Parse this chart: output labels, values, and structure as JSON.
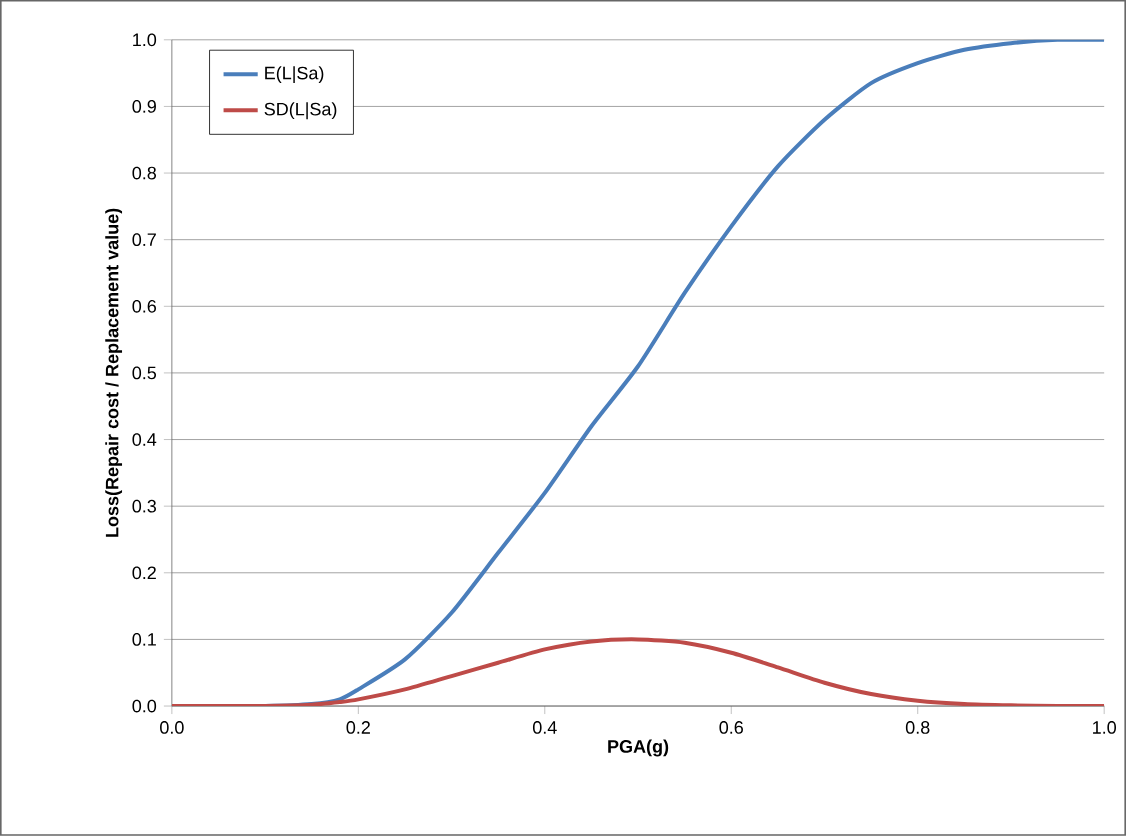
{
  "chart_data": {
    "type": "line",
    "xlabel": "PGA(g)",
    "ylabel": "Loss(Repair cost / Replacement value)",
    "x": [
      0,
      0.05,
      0.1,
      0.15,
      0.18,
      0.2,
      0.25,
      0.3,
      0.35,
      0.4,
      0.45,
      0.5,
      0.55,
      0.6,
      0.65,
      0.7,
      0.75,
      0.8,
      0.85,
      0.9,
      0.95,
      1.0
    ],
    "series": [
      {
        "name": "E(L|Sa)",
        "color": "#4a7ebb",
        "values": [
          0,
          0,
          0,
          0.003,
          0.01,
          0.025,
          0.07,
          0.14,
          0.23,
          0.32,
          0.42,
          0.51,
          0.62,
          0.72,
          0.81,
          0.88,
          0.935,
          0.965,
          0.985,
          0.995,
          1.0,
          1.0
        ]
      },
      {
        "name": "SD(L|Sa)",
        "color": "#be4b48",
        "values": [
          0,
          0,
          0,
          0.002,
          0.006,
          0.01,
          0.025,
          0.045,
          0.065,
          0.085,
          0.097,
          0.1,
          0.095,
          0.08,
          0.058,
          0.035,
          0.018,
          0.008,
          0.003,
          0.001,
          0,
          0
        ]
      }
    ],
    "xlim": [
      0,
      1.0
    ],
    "ylim": [
      0,
      1.0
    ],
    "xticks": [
      {
        "value": 0,
        "label": "0.0"
      },
      {
        "value": 0.2,
        "label": "0.2"
      },
      {
        "value": 0.4,
        "label": "0.4"
      },
      {
        "value": 0.6,
        "label": "0.6"
      },
      {
        "value": 0.8,
        "label": "0.8"
      },
      {
        "value": 1.0,
        "label": "1.0"
      }
    ],
    "yticks": [
      {
        "value": 0,
        "label": "0.0"
      },
      {
        "value": 0.1,
        "label": "0.1"
      },
      {
        "value": 0.2,
        "label": "0.2"
      },
      {
        "value": 0.3,
        "label": "0.3"
      },
      {
        "value": 0.4,
        "label": "0.4"
      },
      {
        "value": 0.5,
        "label": "0.5"
      },
      {
        "value": 0.6,
        "label": "0.6"
      },
      {
        "value": 0.7,
        "label": "0.7"
      },
      {
        "value": 0.8,
        "label": "0.8"
      },
      {
        "value": 0.9,
        "label": "0.9"
      },
      {
        "value": 1.0,
        "label": "1.0"
      }
    ],
    "grid": "y",
    "legend": "top left",
    "marker": "none",
    "line_style": "solid"
  }
}
